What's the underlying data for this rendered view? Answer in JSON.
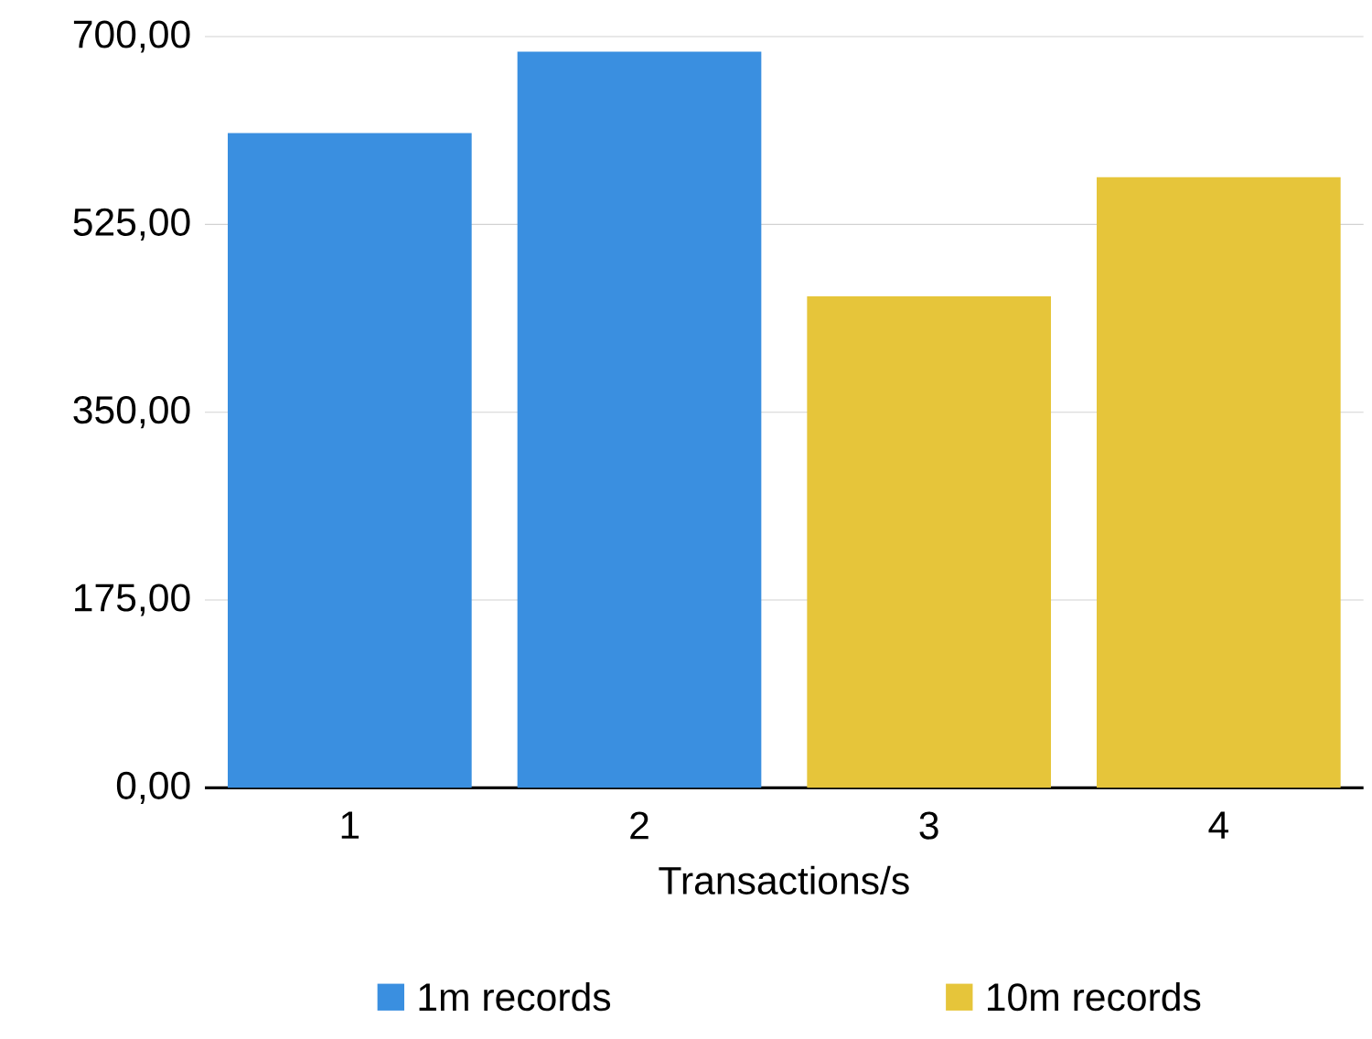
{
  "chart_data": {
    "type": "bar",
    "xlabel": "Transactions/s",
    "categories": [
      "1",
      "2",
      "3",
      "4"
    ],
    "series": [
      {
        "name": "1m records",
        "color": "#3a8fe0",
        "values": [
          610,
          686,
          null,
          null
        ]
      },
      {
        "name": "10m records",
        "color": "#e6c53a",
        "values": [
          null,
          null,
          458,
          569
        ]
      }
    ],
    "ylim": [
      0,
      700
    ],
    "yticks": [
      {
        "value": 0,
        "label": "0,00"
      },
      {
        "value": 175,
        "label": "175,00"
      },
      {
        "value": 350,
        "label": "350,00"
      },
      {
        "value": 525,
        "label": "525,00"
      },
      {
        "value": 700,
        "label": "700,00"
      }
    ],
    "grid": "y",
    "legend": "bottom"
  }
}
